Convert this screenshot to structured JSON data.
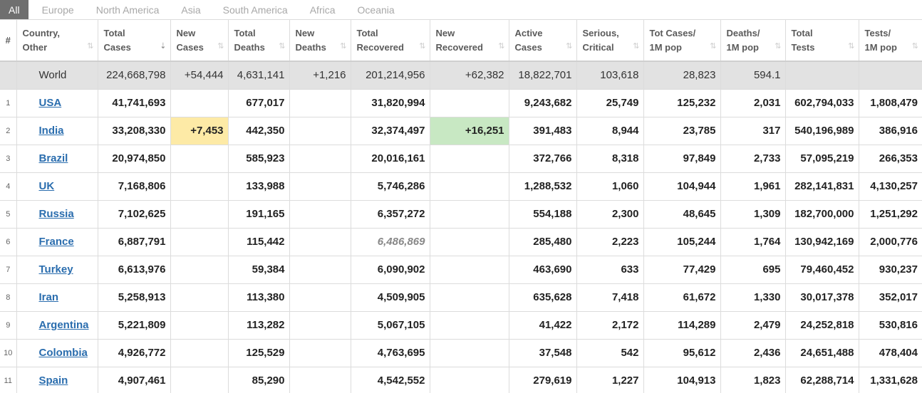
{
  "tabs": [
    "All",
    "Europe",
    "North America",
    "Asia",
    "South America",
    "Africa",
    "Oceania"
  ],
  "headers": [
    {
      "l1": "#",
      "l2": ""
    },
    {
      "l1": "Country,",
      "l2": "Other"
    },
    {
      "l1": "Total",
      "l2": "Cases"
    },
    {
      "l1": "New",
      "l2": "Cases"
    },
    {
      "l1": "Total",
      "l2": "Deaths"
    },
    {
      "l1": "New",
      "l2": "Deaths"
    },
    {
      "l1": "Total",
      "l2": "Recovered"
    },
    {
      "l1": "New",
      "l2": "Recovered"
    },
    {
      "l1": "Active",
      "l2": "Cases"
    },
    {
      "l1": "Serious,",
      "l2": "Critical"
    },
    {
      "l1": "Tot Cases/",
      "l2": "1M pop"
    },
    {
      "l1": "Deaths/",
      "l2": "1M pop"
    },
    {
      "l1": "Total",
      "l2": "Tests"
    },
    {
      "l1": "Tests/",
      "l2": "1M pop"
    }
  ],
  "sort_glyph": "⇅",
  "sort_active_glyph": "⇣",
  "world": {
    "country": "World",
    "total_cases": "224,668,798",
    "new_cases": "+54,444",
    "total_deaths": "4,631,141",
    "new_deaths": "+1,216",
    "total_recovered": "201,214,956",
    "new_recovered": "+62,382",
    "active_cases": "18,822,701",
    "serious": "103,618",
    "cases_per_m": "28,823",
    "deaths_per_m": "594.1",
    "total_tests": "",
    "tests_per_m": ""
  },
  "rows": [
    {
      "idx": "1",
      "country": "USA",
      "total_cases": "41,741,693",
      "new_cases": "",
      "total_deaths": "677,017",
      "new_deaths": "",
      "total_recovered": "31,820,994",
      "new_recovered": "",
      "active_cases": "9,243,682",
      "serious": "25,749",
      "cases_per_m": "125,232",
      "deaths_per_m": "2,031",
      "total_tests": "602,794,033",
      "tests_per_m": "1,808,479"
    },
    {
      "idx": "2",
      "country": "India",
      "total_cases": "33,208,330",
      "new_cases": "+7,453",
      "total_deaths": "442,350",
      "new_deaths": "",
      "total_recovered": "32,374,497",
      "new_recovered": "+16,251",
      "active_cases": "391,483",
      "serious": "8,944",
      "cases_per_m": "23,785",
      "deaths_per_m": "317",
      "total_tests": "540,196,989",
      "tests_per_m": "386,916"
    },
    {
      "idx": "3",
      "country": "Brazil",
      "total_cases": "20,974,850",
      "new_cases": "",
      "total_deaths": "585,923",
      "new_deaths": "",
      "total_recovered": "20,016,161",
      "new_recovered": "",
      "active_cases": "372,766",
      "serious": "8,318",
      "cases_per_m": "97,849",
      "deaths_per_m": "2,733",
      "total_tests": "57,095,219",
      "tests_per_m": "266,353"
    },
    {
      "idx": "4",
      "country": "UK",
      "total_cases": "7,168,806",
      "new_cases": "",
      "total_deaths": "133,988",
      "new_deaths": "",
      "total_recovered": "5,746,286",
      "new_recovered": "",
      "active_cases": "1,288,532",
      "serious": "1,060",
      "cases_per_m": "104,944",
      "deaths_per_m": "1,961",
      "total_tests": "282,141,831",
      "tests_per_m": "4,130,257"
    },
    {
      "idx": "5",
      "country": "Russia",
      "total_cases": "7,102,625",
      "new_cases": "",
      "total_deaths": "191,165",
      "new_deaths": "",
      "total_recovered": "6,357,272",
      "new_recovered": "",
      "active_cases": "554,188",
      "serious": "2,300",
      "cases_per_m": "48,645",
      "deaths_per_m": "1,309",
      "total_tests": "182,700,000",
      "tests_per_m": "1,251,292"
    },
    {
      "idx": "6",
      "country": "France",
      "total_cases": "6,887,791",
      "new_cases": "",
      "total_deaths": "115,442",
      "new_deaths": "",
      "total_recovered": "6,486,869",
      "new_recovered": "",
      "active_cases": "285,480",
      "serious": "2,223",
      "cases_per_m": "105,244",
      "deaths_per_m": "1,764",
      "total_tests": "130,942,169",
      "tests_per_m": "2,000,776"
    },
    {
      "idx": "7",
      "country": "Turkey",
      "total_cases": "6,613,976",
      "new_cases": "",
      "total_deaths": "59,384",
      "new_deaths": "",
      "total_recovered": "6,090,902",
      "new_recovered": "",
      "active_cases": "463,690",
      "serious": "633",
      "cases_per_m": "77,429",
      "deaths_per_m": "695",
      "total_tests": "79,460,452",
      "tests_per_m": "930,237"
    },
    {
      "idx": "8",
      "country": "Iran",
      "total_cases": "5,258,913",
      "new_cases": "",
      "total_deaths": "113,380",
      "new_deaths": "",
      "total_recovered": "4,509,905",
      "new_recovered": "",
      "active_cases": "635,628",
      "serious": "7,418",
      "cases_per_m": "61,672",
      "deaths_per_m": "1,330",
      "total_tests": "30,017,378",
      "tests_per_m": "352,017"
    },
    {
      "idx": "9",
      "country": "Argentina",
      "total_cases": "5,221,809",
      "new_cases": "",
      "total_deaths": "113,282",
      "new_deaths": "",
      "total_recovered": "5,067,105",
      "new_recovered": "",
      "active_cases": "41,422",
      "serious": "2,172",
      "cases_per_m": "114,289",
      "deaths_per_m": "2,479",
      "total_tests": "24,252,818",
      "tests_per_m": "530,816"
    },
    {
      "idx": "10",
      "country": "Colombia",
      "total_cases": "4,926,772",
      "new_cases": "",
      "total_deaths": "125,529",
      "new_deaths": "",
      "total_recovered": "4,763,695",
      "new_recovered": "",
      "active_cases": "37,548",
      "serious": "542",
      "cases_per_m": "95,612",
      "deaths_per_m": "2,436",
      "total_tests": "24,651,488",
      "tests_per_m": "478,404"
    },
    {
      "idx": "11",
      "country": "Spain",
      "total_cases": "4,907,461",
      "new_cases": "",
      "total_deaths": "85,290",
      "new_deaths": "",
      "total_recovered": "4,542,552",
      "new_recovered": "",
      "active_cases": "279,619",
      "serious": "1,227",
      "cases_per_m": "104,913",
      "deaths_per_m": "1,823",
      "total_tests": "62,288,714",
      "tests_per_m": "1,331,628"
    }
  ],
  "colors": {
    "new_cases_highlight": "#fdeaa6",
    "new_recovered_highlight": "#c8e8c3",
    "world_row_bg": "#e2e2e2",
    "link": "#2a6dae",
    "active_tab_bg": "#6f6f6f"
  }
}
